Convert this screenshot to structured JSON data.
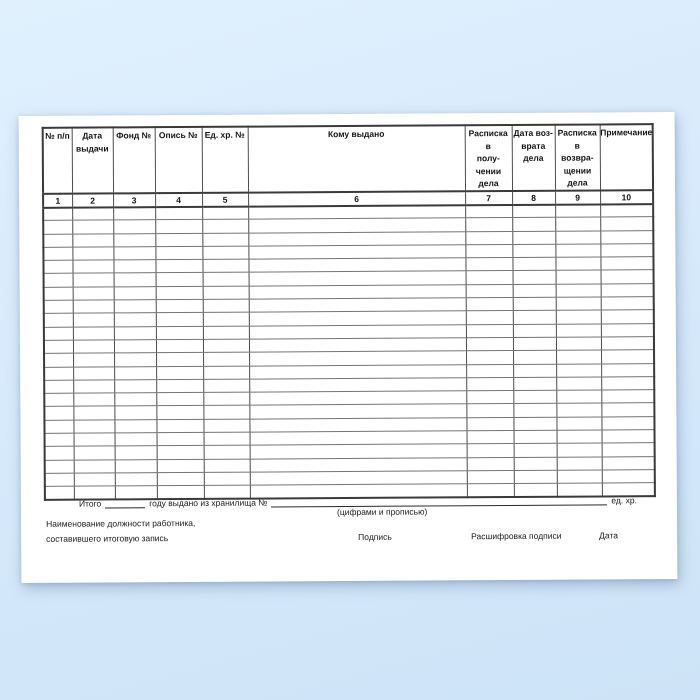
{
  "document": {
    "table": {
      "columns": [
        {
          "num": "1",
          "header": "№ п/п"
        },
        {
          "num": "2",
          "header": "Дата\nвыдачи"
        },
        {
          "num": "3",
          "header": "Фонд №"
        },
        {
          "num": "4",
          "header": "Опись №"
        },
        {
          "num": "5",
          "header": "Ед. хр. №"
        },
        {
          "num": "6",
          "header": "Кому выдано"
        },
        {
          "num": "7",
          "header": "Расписка в\nполу-\nчении\nдела"
        },
        {
          "num": "8",
          "header": "Дата воз-\nврата дела"
        },
        {
          "num": "9",
          "header": "Расписка в\nвозвра-\nщении\nдела"
        },
        {
          "num": "10",
          "header": "Примечание"
        }
      ],
      "empty_row_count": 22
    },
    "footer": {
      "total_label": "Итого",
      "issued_from_label": "году выдано из хранилища №",
      "units_label": "ед. хр.",
      "figures_words_hint": "(цифрами и прописью)",
      "position_line1": "Наименование должности работника,",
      "position_line2": "составившего итоговую запись",
      "signature_label": "Подпись",
      "signature_name_label": "Расшифровка подписи",
      "date_label": "Дата"
    },
    "colors": {
      "background_top": "#e0f0fd",
      "background_bottom": "#cde3f7",
      "paper": "#ffffff",
      "table_line": "#3a3a3a",
      "text": "#1a1a1a"
    }
  }
}
